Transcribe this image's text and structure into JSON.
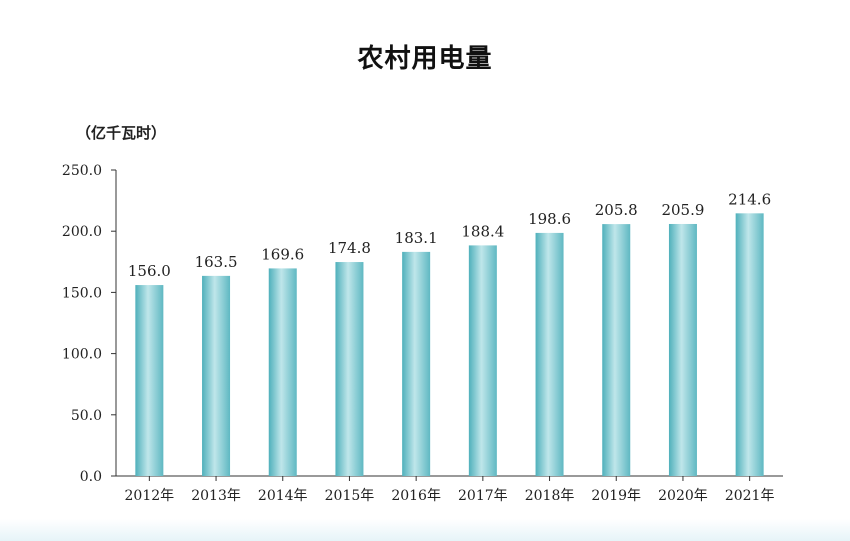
{
  "chart_data": {
    "type": "bar",
    "title": "农村用电量",
    "unit": "（亿千瓦时）",
    "categories": [
      "2012年",
      "2013年",
      "2014年",
      "2015年",
      "2016年",
      "2017年",
      "2018年",
      "2019年",
      "2020年",
      "2021年"
    ],
    "values": [
      156.0,
      163.5,
      169.6,
      174.8,
      183.1,
      188.4,
      198.6,
      205.8,
      205.9,
      214.6
    ],
    "value_labels": [
      "156.0",
      "163.5",
      "169.6",
      "174.8",
      "183.1",
      "188.4",
      "198.6",
      "205.8",
      "205.9",
      "214.6"
    ],
    "yticks": [
      "0.0",
      "50.0",
      "100.0",
      "150.0",
      "200.0",
      "250.0"
    ],
    "ylim": [
      0,
      250
    ],
    "grid": false,
    "bar_color": "#6fc3cc"
  }
}
